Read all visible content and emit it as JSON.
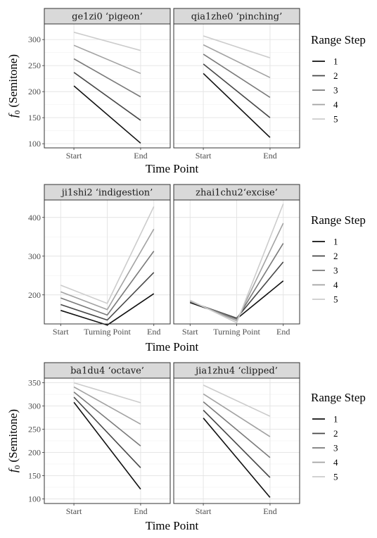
{
  "chart_data": [
    {
      "type": "line",
      "ylabel": "f0 (Semitone)",
      "xlabel": "Time Point",
      "x": [
        "Start",
        "End"
      ],
      "yticks": [
        100,
        150,
        200,
        250,
        300
      ],
      "ylim": [
        92,
        330
      ],
      "legend_title": "Range Step",
      "legend_position": "right",
      "grid": true,
      "facets": [
        {
          "strip": "ge1zi0 ‘pigeon’",
          "series": [
            {
              "name": "1",
              "values": [
                211,
                101
              ]
            },
            {
              "name": "2",
              "values": [
                237,
                145
              ]
            },
            {
              "name": "3",
              "values": [
                263,
                190
              ]
            },
            {
              "name": "4",
              "values": [
                289,
                235
              ]
            },
            {
              "name": "5",
              "values": [
                314,
                279
              ]
            }
          ]
        },
        {
          "strip": "qia1zhe0 ‘pinching’",
          "series": [
            {
              "name": "1",
              "values": [
                235,
                112
              ]
            },
            {
              "name": "2",
              "values": [
                253,
                150
              ]
            },
            {
              "name": "3",
              "values": [
                272,
                189
              ]
            },
            {
              "name": "4",
              "values": [
                290,
                227
              ]
            },
            {
              "name": "5",
              "values": [
                307,
                265
              ]
            }
          ]
        }
      ]
    },
    {
      "type": "line",
      "ylabel": "",
      "xlabel": "Time Point",
      "x": [
        "Start",
        "Turning Point",
        "End"
      ],
      "yticks": [
        200,
        300,
        400
      ],
      "ylim": [
        125,
        445
      ],
      "legend_title": "Range Step",
      "legend_position": "right",
      "grid": true,
      "facets": [
        {
          "strip": "ji1shi2 ‘indigestion’",
          "series": [
            {
              "name": "1",
              "values": [
                160,
                122,
                203
              ]
            },
            {
              "name": "2",
              "values": [
                175,
                135,
                258
              ]
            },
            {
              "name": "3",
              "values": [
                192,
                148,
                313
              ]
            },
            {
              "name": "4",
              "values": [
                208,
                162,
                370
              ]
            },
            {
              "name": "5",
              "values": [
                225,
                178,
                428
              ]
            }
          ]
        },
        {
          "strip": "zhai1chu2‘excise’",
          "series": [
            {
              "name": "1",
              "values": [
                180,
                138,
                236
              ]
            },
            {
              "name": "2",
              "values": [
                182,
                140,
                285
              ]
            },
            {
              "name": "3",
              "values": [
                183,
                137,
                333
              ]
            },
            {
              "name": "4",
              "values": [
                184,
                133,
                385
              ]
            },
            {
              "name": "5",
              "values": [
                186,
                128,
                435
              ]
            }
          ]
        }
      ]
    },
    {
      "type": "line",
      "ylabel": "f0 (Semitone)",
      "xlabel": "Time Point",
      "x": [
        "Start",
        "End"
      ],
      "yticks": [
        100,
        150,
        200,
        250,
        300,
        350
      ],
      "ylim": [
        90,
        360
      ],
      "legend_title": "Range Step",
      "legend_position": "right",
      "grid": true,
      "facets": [
        {
          "strip": "ba1du4 ‘octave’",
          "series": [
            {
              "name": "1",
              "values": [
                308,
                121
              ]
            },
            {
              "name": "2",
              "values": [
                319,
                167
              ]
            },
            {
              "name": "3",
              "values": [
                330,
                214
              ]
            },
            {
              "name": "4",
              "values": [
                341,
                261
              ]
            },
            {
              "name": "5",
              "values": [
                350,
                307
              ]
            }
          ]
        },
        {
          "strip": "jia1zhu4 ‘clipped’",
          "series": [
            {
              "name": "1",
              "values": [
                274,
                103
              ]
            },
            {
              "name": "2",
              "values": [
                291,
                146
              ]
            },
            {
              "name": "3",
              "values": [
                309,
                189
              ]
            },
            {
              "name": "4",
              "values": [
                326,
                234
              ]
            },
            {
              "name": "5",
              "values": [
                345,
                278
              ]
            }
          ]
        }
      ]
    }
  ],
  "series_colors": [
    "#111111",
    "#474747",
    "#7a7a7a",
    "#a3a3a3",
    "#cccccc"
  ]
}
